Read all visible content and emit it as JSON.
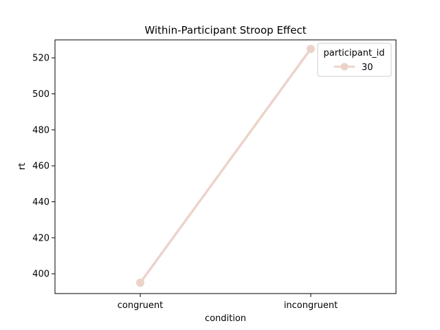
{
  "chart_data": {
    "type": "line",
    "title": "Within-Participant Stroop Effect",
    "xlabel": "condition",
    "ylabel": "rt",
    "categories": [
      "congruent",
      "incongruent"
    ],
    "series": [
      {
        "name": "30",
        "values": [
          395,
          525
        ],
        "color": "#ecd3ca"
      }
    ],
    "ylim": [
      389,
      530
    ],
    "yticks": [
      400,
      420,
      440,
      460,
      480,
      500,
      520
    ],
    "grid": false,
    "legend": {
      "title": "participant_id",
      "placement": "top-right"
    }
  }
}
